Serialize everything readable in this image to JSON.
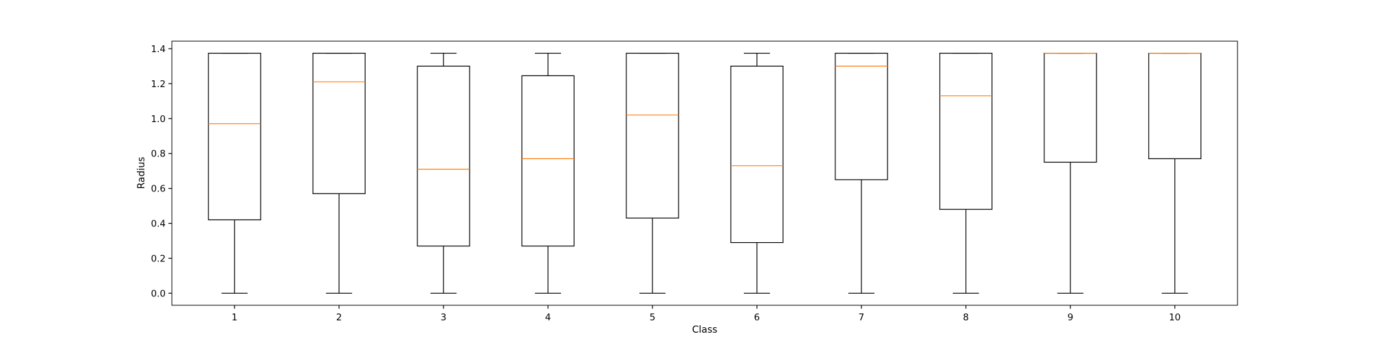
{
  "chart_data": {
    "type": "box",
    "title": "",
    "xlabel": "Class",
    "ylabel": "Radius",
    "categories": [
      "1",
      "2",
      "3",
      "4",
      "5",
      "6",
      "7",
      "8",
      "9",
      "10"
    ],
    "ylim": [
      -0.069,
      1.443
    ],
    "yticks": [
      0.0,
      0.2,
      0.4,
      0.6,
      0.8,
      1.0,
      1.2,
      1.4
    ],
    "ytick_labels": [
      "0.0",
      "0.2",
      "0.4",
      "0.6",
      "0.8",
      "1.0",
      "1.2",
      "1.4"
    ],
    "grid": false,
    "box_color": "#000000",
    "median_color": "#ff7f0e",
    "boxes": [
      {
        "whisker_low": 0.0,
        "q1": 0.42,
        "median": 0.97,
        "q3": 1.374,
        "whisker_high": 1.374
      },
      {
        "whisker_low": 0.0,
        "q1": 0.57,
        "median": 1.21,
        "q3": 1.374,
        "whisker_high": 1.374
      },
      {
        "whisker_low": 0.0,
        "q1": 0.27,
        "median": 0.71,
        "q3": 1.3,
        "whisker_high": 1.374
      },
      {
        "whisker_low": 0.0,
        "q1": 0.27,
        "median": 0.77,
        "q3": 1.245,
        "whisker_high": 1.374
      },
      {
        "whisker_low": 0.0,
        "q1": 0.43,
        "median": 1.02,
        "q3": 1.374,
        "whisker_high": 1.374
      },
      {
        "whisker_low": 0.0,
        "q1": 0.29,
        "median": 0.73,
        "q3": 1.3,
        "whisker_high": 1.374
      },
      {
        "whisker_low": 0.0,
        "q1": 0.65,
        "median": 1.3,
        "q3": 1.374,
        "whisker_high": 1.374
      },
      {
        "whisker_low": 0.0,
        "q1": 0.48,
        "median": 1.13,
        "q3": 1.374,
        "whisker_high": 1.374
      },
      {
        "whisker_low": 0.0,
        "q1": 0.75,
        "median": 1.374,
        "q3": 1.374,
        "whisker_high": 1.374
      },
      {
        "whisker_low": 0.0,
        "q1": 0.77,
        "median": 1.374,
        "q3": 1.374,
        "whisker_high": 1.374
      }
    ]
  }
}
